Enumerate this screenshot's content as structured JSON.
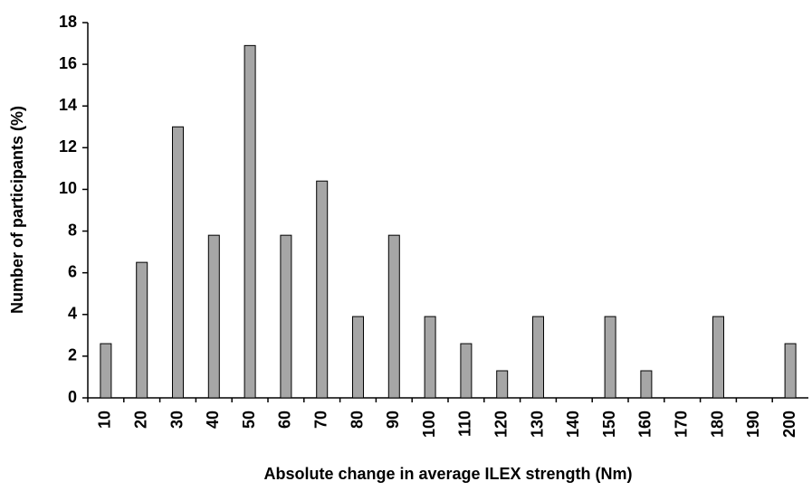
{
  "chart_data": {
    "type": "bar",
    "x_label": "Absolute  change in average ILEX strength  (Nm)",
    "y_label": "Number of participants (%)",
    "categories": [
      "10",
      "20",
      "30",
      "40",
      "50",
      "60",
      "70",
      "80",
      "90",
      "100",
      "110",
      "120",
      "130",
      "140",
      "150",
      "160",
      "170",
      "180",
      "190",
      "200"
    ],
    "values": [
      2.6,
      6.5,
      13,
      7.8,
      16.9,
      7.8,
      10.4,
      3.9,
      7.8,
      3.9,
      2.6,
      1.3,
      3.9,
      0,
      3.9,
      1.3,
      0,
      3.9,
      0,
      2.6
    ],
    "color": "#a6a6a6",
    "ylim": [
      0,
      18
    ],
    "yticks": [
      0,
      2,
      4,
      6,
      8,
      10,
      12,
      14,
      16,
      18
    ],
    "grid": false
  }
}
